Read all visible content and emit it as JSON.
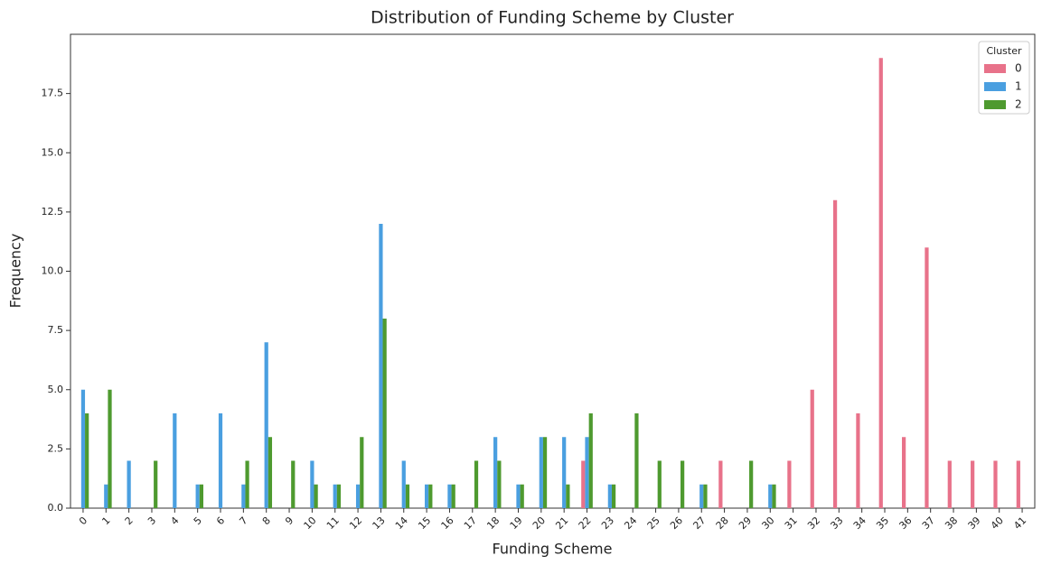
{
  "chart_data": {
    "type": "bar",
    "title": "Distribution of Funding Scheme by Cluster",
    "x_label": "Funding Scheme",
    "y_label": "Frequency",
    "legend_title": "Cluster",
    "legend_position": "upper right",
    "categories": [
      "0",
      "1",
      "2",
      "3",
      "4",
      "5",
      "6",
      "7",
      "8",
      "9",
      "10",
      "11",
      "12",
      "13",
      "14",
      "15",
      "16",
      "17",
      "18",
      "19",
      "20",
      "21",
      "22",
      "23",
      "24",
      "25",
      "26",
      "27",
      "28",
      "29",
      "30",
      "31",
      "32",
      "33",
      "34",
      "35",
      "36",
      "37",
      "38",
      "39",
      "40",
      "41"
    ],
    "series": [
      {
        "name": "0",
        "color": "#e8728a",
        "values": [
          0,
          0,
          0,
          0,
          0,
          0,
          0,
          0,
          0,
          0,
          0,
          0,
          0,
          0,
          0,
          0,
          0,
          0,
          0,
          0,
          0,
          0,
          2,
          0,
          0,
          0,
          0,
          0,
          2,
          0,
          0,
          2,
          5,
          13,
          4,
          19,
          3,
          11,
          2,
          2,
          2,
          2
        ]
      },
      {
        "name": "1",
        "color": "#4a9fe0",
        "values": [
          5,
          1,
          2,
          0,
          4,
          1,
          4,
          1,
          7,
          0,
          2,
          1,
          1,
          12,
          2,
          1,
          1,
          0,
          3,
          1,
          3,
          3,
          3,
          1,
          0,
          0,
          0,
          1,
          0,
          0,
          1,
          0,
          0,
          0,
          0,
          0,
          0,
          0,
          0,
          0,
          0,
          0
        ]
      },
      {
        "name": "2",
        "color": "#4e9a2f",
        "values": [
          4,
          5,
          0,
          2,
          0,
          1,
          0,
          2,
          3,
          2,
          1,
          1,
          3,
          8,
          1,
          1,
          1,
          2,
          2,
          1,
          3,
          1,
          4,
          1,
          4,
          2,
          2,
          1,
          0,
          2,
          1,
          0,
          0,
          0,
          0,
          0,
          0,
          0,
          0,
          0,
          0,
          0
        ]
      }
    ],
    "ylim": [
      0,
      20
    ],
    "yticks": [
      {
        "value": 0,
        "label": "0.0"
      },
      2.5,
      {
        "value": 5,
        "label": "5.0"
      },
      7.5,
      {
        "value": 10,
        "label": "10.0"
      },
      12.5,
      {
        "value": 15,
        "label": "15.0"
      },
      17.5
    ],
    "grid": false
  }
}
